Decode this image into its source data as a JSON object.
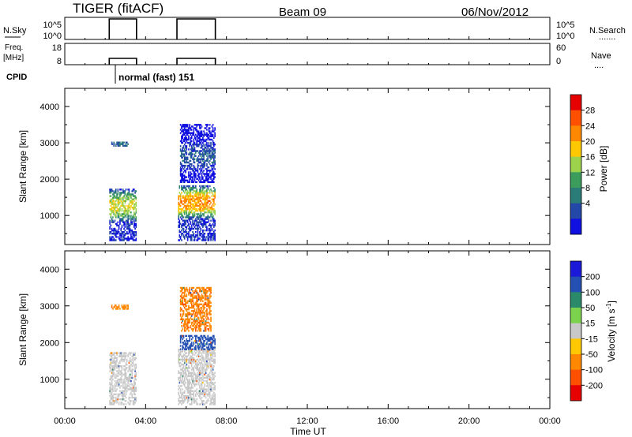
{
  "header": {
    "station": "TIGER (fitACF)",
    "beam": "Beam 09",
    "date": "06/Nov/2012"
  },
  "strips": {
    "nsky_label": "N.Sky",
    "nsky_ticks": [
      "10^5",
      "10^0"
    ],
    "freq_label_1": "Freq.",
    "freq_label_2": "[MHz]",
    "freq_ticks": [
      "18",
      "8"
    ],
    "nave_ticks": [
      "60",
      "0"
    ],
    "nsearch_label": "N.Search",
    "nave_label": "Nave",
    "cpid_label": "CPID",
    "cpid_text": "normal (fast) 151",
    "active_intervals_hours": [
      [
        2.2,
        3.55
      ],
      [
        5.55,
        7.45
      ]
    ]
  },
  "x_axis": {
    "label": "Time UT",
    "ticks": [
      "00:00",
      "04:00",
      "08:00",
      "12:00",
      "16:00",
      "20:00",
      "00:00"
    ]
  },
  "chart_data": [
    {
      "type": "heatmap",
      "name": "power",
      "ylabel": "Slant Range [km]",
      "xlim": [
        0,
        24
      ],
      "ylim": [
        200,
        4500
      ],
      "yticks": [
        "4000",
        "3000",
        "2000",
        "1000"
      ],
      "colorbar": {
        "label": "Power [dB]",
        "ticks": [
          "28",
          "24",
          "20",
          "16",
          "12",
          "8",
          "4"
        ],
        "colors": [
          "#1010e0",
          "#2448a8",
          "#2a7c78",
          "#3c9c5c",
          "#9cd24c",
          "#ffc800",
          "#ff8800",
          "#ff5000",
          "#e60000"
        ]
      },
      "echo_regions": [
        {
          "t_start": 2.2,
          "t_end": 3.5,
          "range_min": 300,
          "range_max": 1700,
          "peak_range": 1250,
          "peak_db": 20
        },
        {
          "t_start": 2.3,
          "t_end": 3.1,
          "range_min": 2900,
          "range_max": 3000,
          "peak_range": 2950,
          "peak_db": 8
        },
        {
          "t_start": 5.6,
          "t_end": 7.4,
          "range_min": 300,
          "range_max": 1800,
          "peak_range": 1350,
          "peak_db": 26
        },
        {
          "t_start": 5.7,
          "t_end": 7.4,
          "range_min": 1900,
          "range_max": 3500,
          "peak_range": 2600,
          "peak_db": 7
        }
      ]
    },
    {
      "type": "heatmap",
      "name": "velocity",
      "ylabel": "Slant Range [km]",
      "xlabel": "Time UT",
      "xlim": [
        0,
        24
      ],
      "ylim": [
        200,
        4500
      ],
      "yticks": [
        "4000",
        "3000",
        "2000",
        "1000"
      ],
      "colorbar": {
        "label": "Velocity [m s^-1]",
        "ticks": [
          "200",
          "100",
          "50",
          "15",
          "-15",
          "-50",
          "-100",
          "-200"
        ],
        "colors": [
          "#1a1ad8",
          "#2450b4",
          "#2a8a6a",
          "#7cd24c",
          "#c8c8c8",
          "#ffc800",
          "#ff8800",
          "#ff5000",
          "#e60000"
        ]
      },
      "echo_regions": [
        {
          "t_start": 2.2,
          "t_end": 3.5,
          "range_min": 300,
          "range_max": 1700,
          "velocity": 0
        },
        {
          "t_start": 2.3,
          "t_end": 3.1,
          "range_min": 2900,
          "range_max": 3000,
          "velocity": -80
        },
        {
          "t_start": 5.6,
          "t_end": 7.4,
          "range_min": 300,
          "range_max": 1800,
          "velocity": 0
        },
        {
          "t_start": 5.7,
          "t_end": 7.4,
          "range_min": 1800,
          "range_max": 2200,
          "velocity": 150
        },
        {
          "t_start": 5.7,
          "t_end": 7.2,
          "range_min": 2300,
          "range_max": 3500,
          "velocity": -90
        }
      ]
    }
  ]
}
